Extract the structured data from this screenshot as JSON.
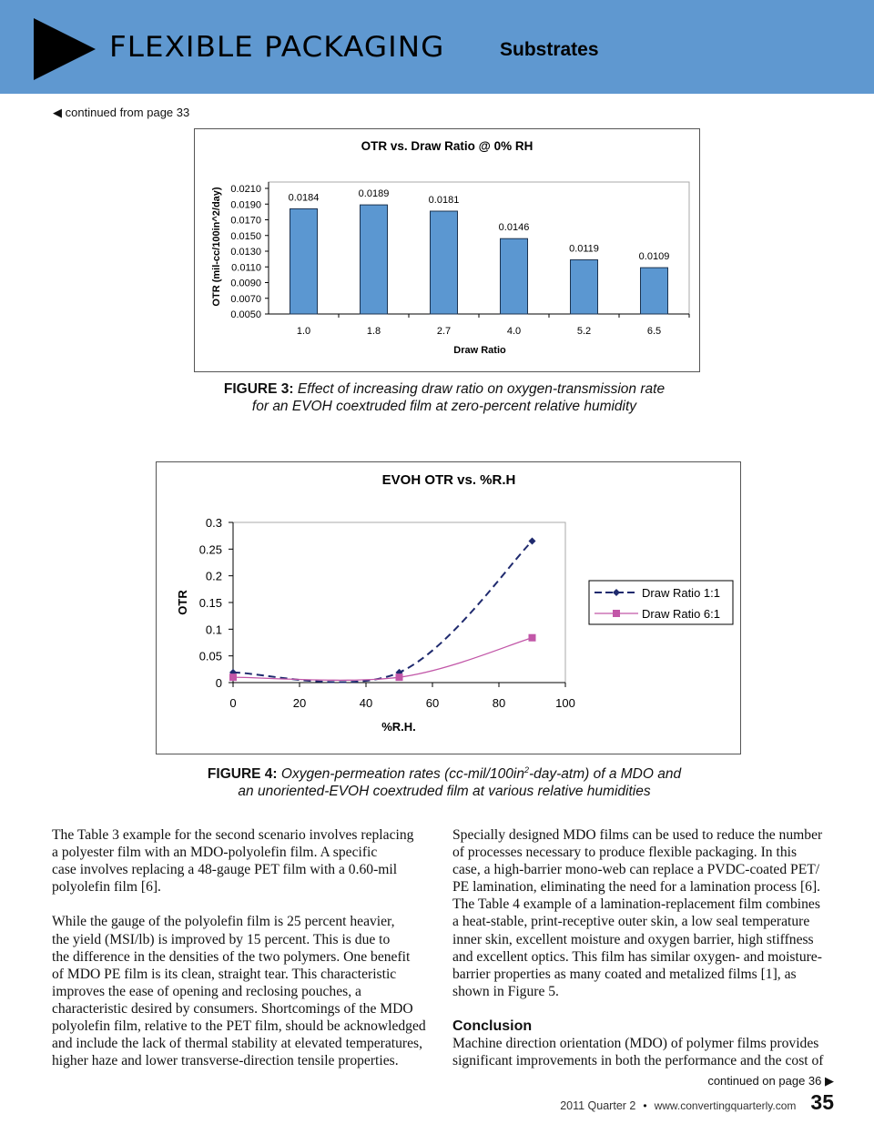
{
  "header": {
    "brand": "FLEXIBLE PACKAGING",
    "section": "Substrates",
    "colors": {
      "band": "#5f98d0"
    }
  },
  "continued_from": "continued from page 33",
  "chart_data": [
    {
      "type": "bar",
      "title": "OTR vs. Draw Ratio @ 0% RH",
      "xlabel": "Draw Ratio",
      "ylabel": "OTR (mil-cc/100in^2/day)",
      "categories": [
        "1.0",
        "1.8",
        "2.7",
        "4.0",
        "5.2",
        "6.5"
      ],
      "values": [
        0.0184,
        0.0189,
        0.0181,
        0.0146,
        0.0119,
        0.0109
      ],
      "data_labels": [
        "0.0184",
        "0.0189",
        "0.0181",
        "0.0146",
        "0.0119",
        "0.0109"
      ],
      "yticks": [
        "0.0210",
        "0.0190",
        "0.0170",
        "0.0150",
        "0.0130",
        "0.0110",
        "0.0090",
        "0.0070",
        "0.0050"
      ],
      "ylim": [
        0.005,
        0.021
      ],
      "bar_color": "#5b97d1",
      "grid": false
    },
    {
      "type": "line",
      "title": "EVOH OTR vs. %R.H",
      "xlabel": "%R.H.",
      "ylabel": "OTR",
      "xticks": [
        "0",
        "20",
        "40",
        "60",
        "80",
        "100"
      ],
      "yticks": [
        "0.3",
        "0.25",
        "0.2",
        "0.15",
        "0.1",
        "0.05",
        "0"
      ],
      "xlim": [
        0,
        100
      ],
      "ylim": [
        0,
        0.3
      ],
      "legend_position": "right",
      "series": [
        {
          "name": "Draw Ratio 1:1",
          "x": [
            0,
            50,
            90
          ],
          "y": [
            0.019,
            0.019,
            0.265
          ],
          "color": "#1f2a6e",
          "style": "dashed",
          "marker": "diamond"
        },
        {
          "name": "Draw Ratio 6:1",
          "x": [
            0,
            50,
            90
          ],
          "y": [
            0.01,
            0.01,
            0.084
          ],
          "color": "#c257a8",
          "style": "solid",
          "marker": "square"
        }
      ],
      "grid": false
    }
  ],
  "figure3": {
    "label": "FIGURE 3:",
    "line1": "Effect of increasing draw ratio on oxygen-transmission rate",
    "line2": "for an EVOH coextruded film at zero-percent relative humidity"
  },
  "figure4": {
    "label": "FIGURE 4:",
    "line1a": "Oxygen-permeation rates (cc-mil/100in",
    "sup": "2",
    "line1b": "-day-atm) of a MDO and",
    "line2": "an unoriented-EVOH coextruded film at various relative humidities"
  },
  "left_column": {
    "p1": [
      "The Table 3 example for the second scenario involves replacing",
      "a polyester film with an MDO-polyolefin film. A specific",
      "case involves replacing a 48-gauge PET film with a 0.60-mil",
      "polyolefin film [6]."
    ],
    "p2": [
      "While the gauge of the polyolefin film is 25 percent heavier,",
      "the yield (MSI/lb) is improved by 15 percent. This is due to",
      "the difference in the densities of the two polymers. One benefit",
      "of MDO PE film is its clean, straight tear. This characteristic",
      "improves the ease of opening and reclosing pouches, a",
      "characteristic desired by consumers. Shortcomings of the MDO",
      "polyolefin film, relative to the PET film, should be acknowledged",
      "and include the lack of thermal stability at elevated temperatures,",
      "higher haze and lower transverse-direction tensile properties."
    ]
  },
  "right_column": {
    "p1": [
      "Specially designed MDO films can be used to reduce the number",
      "of processes necessary to produce flexible packaging. In this",
      "case, a high-barrier mono-web can replace a PVDC-coated PET/",
      "PE lamination, eliminating the need for a lamination process [6].",
      "The Table 4 example of a lamination-replacement film combines",
      "a heat-stable, print-receptive outer skin, a low seal temperature",
      "inner skin, excellent moisture and oxygen barrier, high stiffness",
      "and excellent optics. This film has similar oxygen- and moisture-",
      "barrier properties as many coated and metalized films [1], as",
      "shown in Figure 5."
    ],
    "heading": "Conclusion",
    "p2": [
      "Machine direction orientation (MDO) of polymer films provides",
      "significant improvements in both the performance and the cost of"
    ]
  },
  "continued_on": "continued on page 36",
  "footer": {
    "issue": "2011 Quarter 2",
    "bullet": "•",
    "website": "www.convertingquarterly.com",
    "page_number": "35"
  }
}
